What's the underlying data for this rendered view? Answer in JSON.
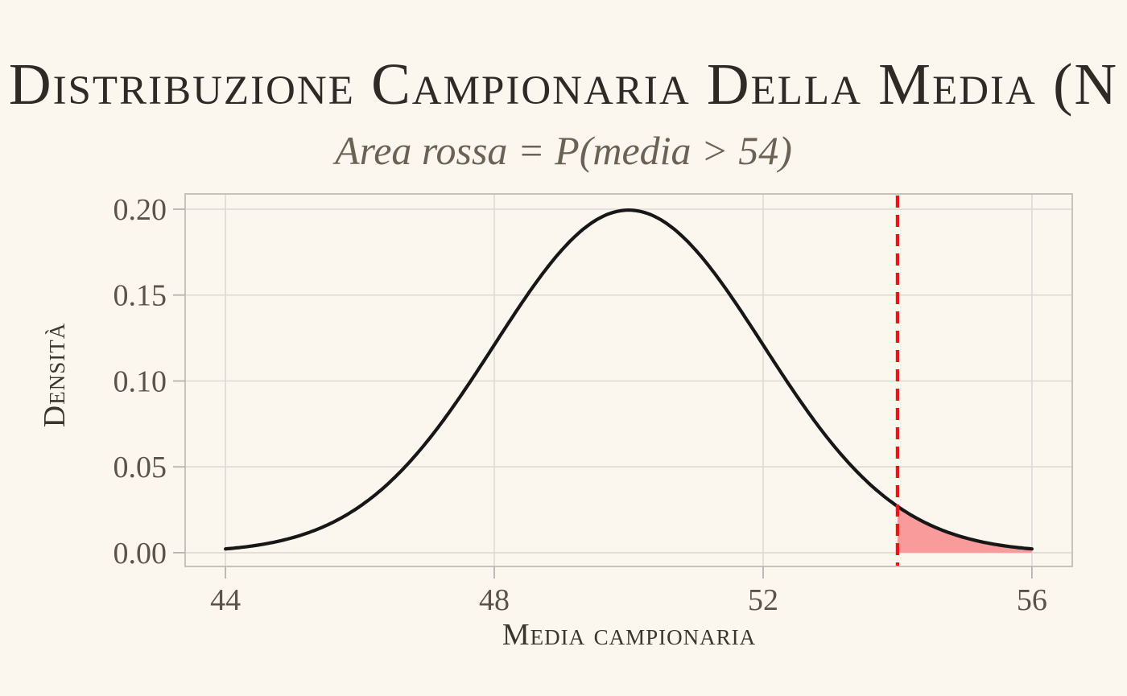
{
  "header": {
    "title": "Distribuzione Campionaria Della Media (N",
    "subtitle": "Area rossa = P(media > 54)"
  },
  "chart_data": {
    "type": "area",
    "title": "Distribuzione Campionaria Della Media (N",
    "subtitle": "Area rossa = P(media > 54)",
    "xlabel": "Media campionaria",
    "ylabel": "Densità",
    "distribution": {
      "family": "normal",
      "mean": 50,
      "sd": 2,
      "peak_density": 0.1995
    },
    "curve_x_range": [
      44,
      56
    ],
    "threshold": 54,
    "shaded_region": "media > 54",
    "x_ticks": [
      44,
      48,
      52,
      56
    ],
    "x_tick_labels": [
      "44",
      "48",
      "52",
      "56"
    ],
    "y_ticks": [
      0.0,
      0.05,
      0.1,
      0.15,
      0.2
    ],
    "y_tick_labels": [
      "0.00",
      "0.05",
      "0.10",
      "0.15",
      "0.20"
    ],
    "xlim": [
      43.4,
      56.6
    ],
    "ylim": [
      -0.008,
      0.2089
    ],
    "grid": "major only",
    "legend": "none"
  },
  "colors": {
    "background": "#fbf7ee",
    "title": "#2e2b25",
    "subtitle": "#6b6255",
    "axis_text": "#5b5349",
    "axis_title": "#3a362e",
    "gridline": "#dedad3",
    "panel_border": "#c6c3bb",
    "tick_mark": "#b7b4ad",
    "curve": "#171717",
    "area_fill": "#f99b9b",
    "threshold_line": "#ee1212"
  }
}
